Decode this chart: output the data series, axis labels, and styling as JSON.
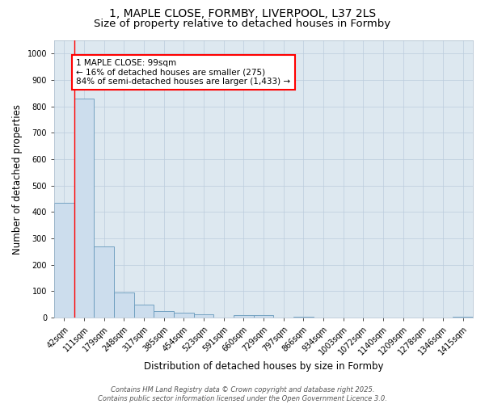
{
  "title_line1": "1, MAPLE CLOSE, FORMBY, LIVERPOOL, L37 2LS",
  "title_line2": "Size of property relative to detached houses in Formby",
  "xlabel": "Distribution of detached houses by size in Formby",
  "ylabel": "Number of detached properties",
  "bar_labels": [
    "42sqm",
    "111sqm",
    "179sqm",
    "248sqm",
    "317sqm",
    "385sqm",
    "454sqm",
    "523sqm",
    "591sqm",
    "660sqm",
    "729sqm",
    "797sqm",
    "866sqm",
    "934sqm",
    "1003sqm",
    "1072sqm",
    "1140sqm",
    "1209sqm",
    "1278sqm",
    "1346sqm",
    "1415sqm"
  ],
  "bar_values": [
    435,
    830,
    270,
    95,
    50,
    25,
    18,
    12,
    1,
    10,
    10,
    1,
    5,
    0,
    0,
    0,
    0,
    0,
    0,
    0,
    5
  ],
  "bar_color": "#ccdded",
  "bar_edge_color": "#6699bb",
  "annotation_text_line1": "1 MAPLE CLOSE: 99sqm",
  "annotation_text_line2": "← 16% of detached houses are smaller (275)",
  "annotation_text_line3": "84% of semi-detached houses are larger (1,433) →",
  "annotation_box_color": "white",
  "annotation_box_edge_color": "red",
  "vline_color": "red",
  "vline_x": 0.5,
  "ylim": [
    0,
    1050
  ],
  "yticks": [
    0,
    100,
    200,
    300,
    400,
    500,
    600,
    700,
    800,
    900,
    1000
  ],
  "grid_color": "#bbccdd",
  "bg_color": "#dde8f0",
  "footer_text": "Contains HM Land Registry data © Crown copyright and database right 2025.\nContains public sector information licensed under the Open Government Licence 3.0.",
  "title_fontsize": 10,
  "subtitle_fontsize": 9.5,
  "xlabel_fontsize": 8.5,
  "ylabel_fontsize": 8.5,
  "tick_fontsize": 7,
  "annotation_fontsize": 7.5,
  "footer_fontsize": 6
}
